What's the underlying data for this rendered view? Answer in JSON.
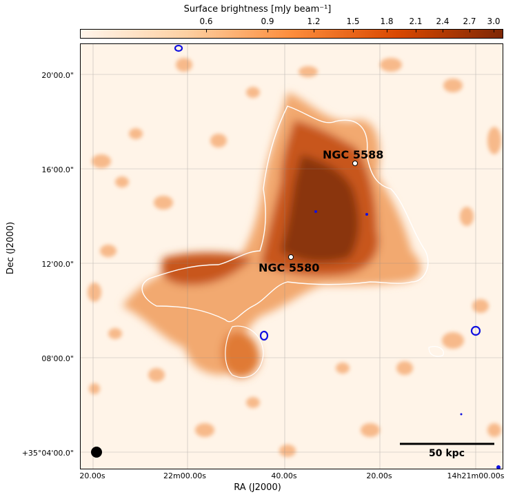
{
  "colorbar": {
    "title": "Surface brightness [mJy beam⁻¹]",
    "ticks": [
      "0.6",
      "0.9",
      "1.2",
      "1.5",
      "1.8",
      "2.1",
      "2.4",
      "2.7",
      "3.0"
    ],
    "colors": [
      "#fff5eb",
      "#fdd0a2",
      "#fd8d3c",
      "#d94801",
      "#7f2704"
    ]
  },
  "axes": {
    "xlabel": "RA (J2000)",
    "ylabel": "Dec (J2000)",
    "xticks": [
      "20.00s",
      "22m00.00s",
      "40.00s",
      "20.00s",
      "14h21m00.00s"
    ],
    "yticks": [
      "20'00.0\"",
      "16'00.0\"",
      "12'00.0\"",
      "08'00.0\"",
      "+35°04'00.0\""
    ]
  },
  "labels": {
    "galaxy1": "NGC 5588",
    "galaxy2": "NGC 5580",
    "scalebar": "50 kpc"
  },
  "colors": {
    "contour": "#ffffff",
    "blue_contour": "#1010e0",
    "emission_dark": "#8a3508",
    "emission_mid": "#c8571a",
    "emission_light": "#f2a970",
    "background": "#fff4e8"
  }
}
